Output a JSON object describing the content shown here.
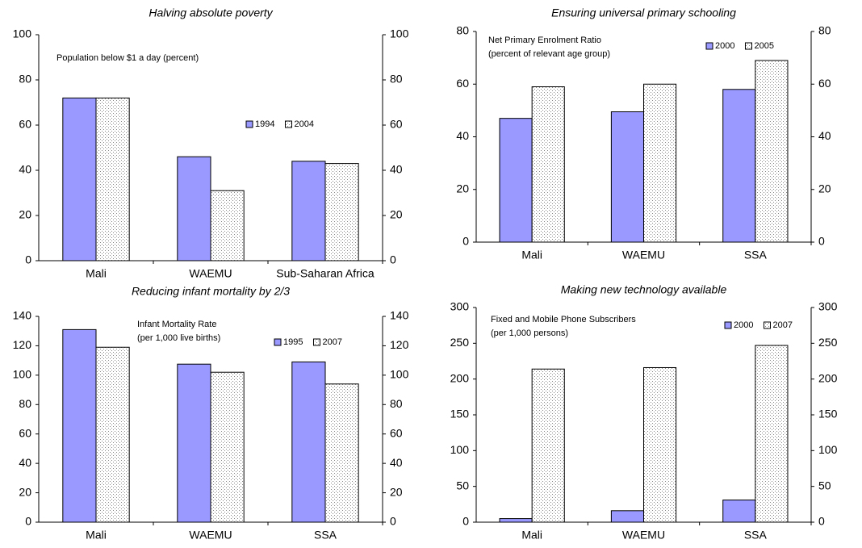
{
  "chart_data": [
    {
      "type": "bar",
      "title": "Halving absolute poverty",
      "annotation": [
        "Population below $1 a day (percent)"
      ],
      "categories": [
        "Mali",
        "WAEMU",
        "Sub-Saharan Africa"
      ],
      "series": [
        {
          "name": "1994",
          "color": "#9999ff",
          "values": [
            72,
            46,
            44
          ]
        },
        {
          "name": "2004",
          "color": "#ffffff",
          "pattern": "dots",
          "values": [
            72,
            31,
            43
          ]
        }
      ],
      "ylim": [
        0,
        100
      ],
      "yticks": [
        0,
        20,
        40,
        60,
        80,
        100
      ],
      "y2lim": [
        0,
        100
      ],
      "y2ticks": [
        0,
        20,
        40,
        60,
        80,
        100
      ]
    },
    {
      "type": "bar",
      "title": "Ensuring universal primary schooling",
      "annotation": [
        "Net Primary Enrolment Ratio",
        "(percent of relevant age group)"
      ],
      "categories": [
        "Mali",
        "WAEMU",
        "SSA"
      ],
      "series": [
        {
          "name": "2000",
          "color": "#9999ff",
          "values": [
            47,
            49.5,
            58
          ]
        },
        {
          "name": "2005",
          "color": "#ffffff",
          "pattern": "dots",
          "values": [
            59,
            60,
            69
          ]
        }
      ],
      "ylim": [
        0,
        80
      ],
      "yticks": [
        0,
        20,
        40,
        60,
        80
      ],
      "y2lim": [
        0,
        80
      ],
      "y2ticks": [
        0,
        20,
        40,
        60,
        80
      ]
    },
    {
      "type": "bar",
      "title": "Reducing infant mortality by 2/3",
      "annotation": [
        "Infant Mortality Rate",
        "(per 1,000 live births)"
      ],
      "categories": [
        "Mali",
        "WAEMU",
        "SSA"
      ],
      "series": [
        {
          "name": "1995",
          "color": "#9999ff",
          "values": [
            131,
            107.5,
            109
          ]
        },
        {
          "name": "2007",
          "color": "#ffffff",
          "pattern": "dots",
          "values": [
            119,
            102,
            94
          ]
        }
      ],
      "ylim": [
        0,
        140
      ],
      "yticks": [
        0,
        20,
        40,
        60,
        80,
        100,
        120,
        140
      ],
      "y2lim": [
        0,
        140
      ],
      "y2ticks": [
        0,
        20,
        40,
        60,
        80,
        100,
        120,
        140
      ]
    },
    {
      "type": "bar",
      "title": "Making new technology available",
      "annotation": [
        "Fixed and Mobile Phone Subscribers",
        "(per 1,000 persons)"
      ],
      "categories": [
        "Mali",
        "WAEMU",
        "SSA"
      ],
      "series": [
        {
          "name": "2000",
          "color": "#9999ff",
          "values": [
            5,
            16,
            31
          ]
        },
        {
          "name": "2007",
          "color": "#ffffff",
          "pattern": "dots",
          "values": [
            214,
            216,
            247
          ]
        }
      ],
      "ylim": [
        0,
        300
      ],
      "yticks": [
        0,
        50,
        100,
        150,
        200,
        250,
        300
      ],
      "y2lim": [
        0,
        300
      ],
      "y2ticks": [
        0,
        50,
        100,
        150,
        200,
        250,
        300
      ]
    }
  ]
}
